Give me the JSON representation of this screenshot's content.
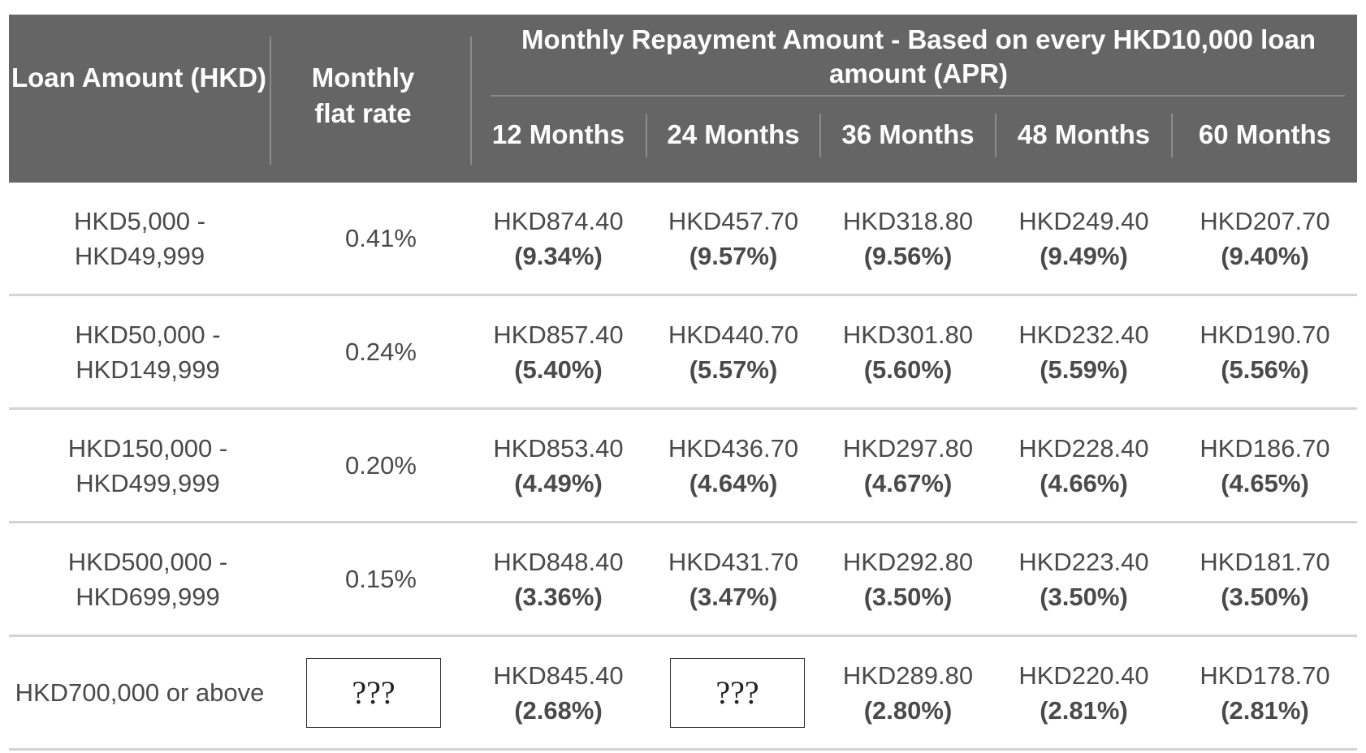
{
  "header": {
    "loan_amount": "Loan Amount (HKD)",
    "flat_rate": "Monthly flat rate",
    "group_title": "Monthly Repayment Amount - Based on every HKD10,000 loan amount (APR)",
    "periods": [
      "12 Months",
      "24 Months",
      "36 Months",
      "48 Months",
      "60 Months"
    ]
  },
  "rows": [
    {
      "loan_amount": "HKD5,000 - HKD49,999",
      "rate": "0.41%",
      "cells": [
        {
          "amount": "HKD874.40",
          "apr": "(9.34%)"
        },
        {
          "amount": "HKD457.70",
          "apr": "(9.57%)"
        },
        {
          "amount": "HKD318.80",
          "apr": "(9.56%)"
        },
        {
          "amount": "HKD249.40",
          "apr": "(9.49%)"
        },
        {
          "amount": "HKD207.70",
          "apr": "(9.40%)"
        }
      ]
    },
    {
      "loan_amount": "HKD50,000 - HKD149,999",
      "rate": "0.24%",
      "cells": [
        {
          "amount": "HKD857.40",
          "apr": "(5.40%)"
        },
        {
          "amount": "HKD440.70",
          "apr": "(5.57%)"
        },
        {
          "amount": "HKD301.80",
          "apr": "(5.60%)"
        },
        {
          "amount": "HKD232.40",
          "apr": "(5.59%)"
        },
        {
          "amount": "HKD190.70",
          "apr": "(5.56%)"
        }
      ]
    },
    {
      "loan_amount": "HKD150,000 - HKD499,999",
      "rate": "0.20%",
      "cells": [
        {
          "amount": "HKD853.40",
          "apr": "(4.49%)"
        },
        {
          "amount": "HKD436.70",
          "apr": "(4.64%)"
        },
        {
          "amount": "HKD297.80",
          "apr": "(4.67%)"
        },
        {
          "amount": "HKD228.40",
          "apr": "(4.66%)"
        },
        {
          "amount": "HKD186.70",
          "apr": "(4.65%)"
        }
      ]
    },
    {
      "loan_amount": "HKD500,000 - HKD699,999",
      "rate": "0.15%",
      "cells": [
        {
          "amount": "HKD848.40",
          "apr": "(3.36%)"
        },
        {
          "amount": "HKD431.70",
          "apr": "(3.47%)"
        },
        {
          "amount": "HKD292.80",
          "apr": "(3.50%)"
        },
        {
          "amount": "HKD223.40",
          "apr": "(3.50%)"
        },
        {
          "amount": "HKD181.70",
          "apr": "(3.50%)"
        }
      ]
    },
    {
      "loan_amount": "HKD700,000 or above",
      "rate": "???",
      "cells": [
        {
          "amount": "HKD845.40",
          "apr": "(2.68%)"
        },
        {
          "amount": "???",
          "apr": ""
        },
        {
          "amount": "HKD289.80",
          "apr": "(2.80%)"
        },
        {
          "amount": "HKD220.40",
          "apr": "(2.81%)"
        },
        {
          "amount": "HKD178.70",
          "apr": "(2.81%)"
        }
      ]
    }
  ]
}
